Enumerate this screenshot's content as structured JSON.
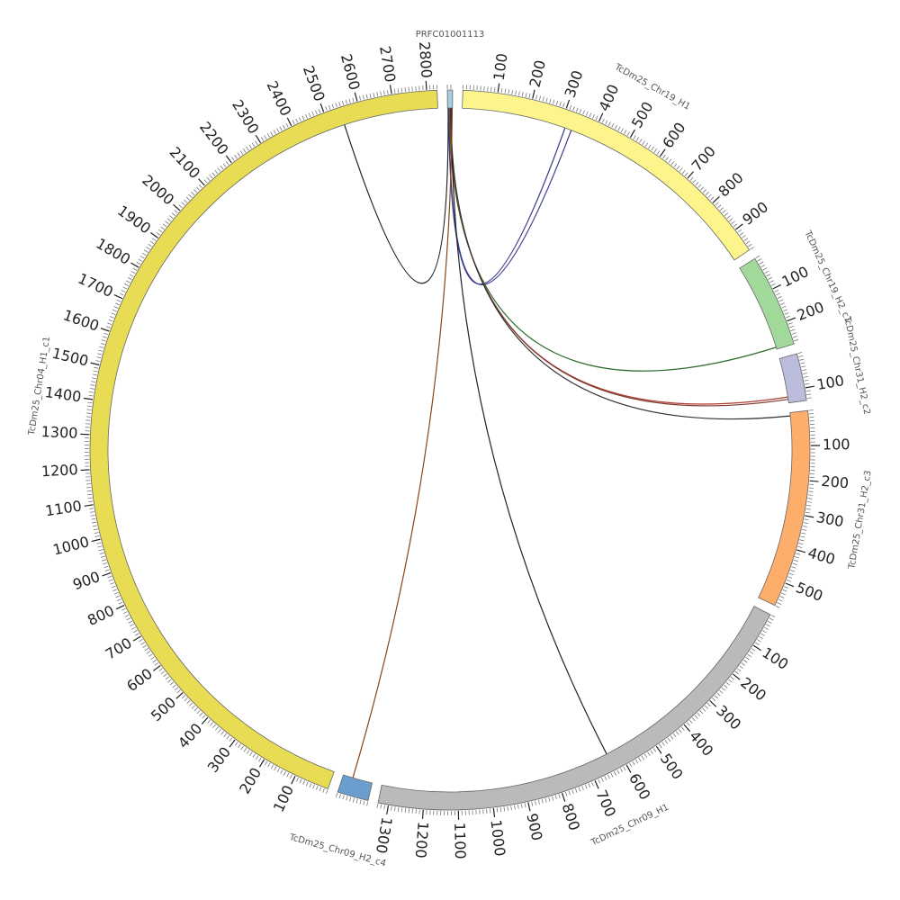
{
  "chart_data": {
    "type": "circos",
    "minor_tick_step": 10,
    "segments": [
      {
        "name": "PRFC01001113",
        "color": "#a6cee3",
        "length": 15,
        "ticks": []
      },
      {
        "name": "TcDm25_Chr19_H1",
        "color": "#fdf58c",
        "length": 970,
        "ticks": [
          100,
          200,
          300,
          400,
          500,
          600,
          700,
          800,
          900
        ]
      },
      {
        "name": "TcDm25_Chr19_H2_c1",
        "color": "#a1d99b",
        "length": 268,
        "ticks": [
          100,
          200
        ]
      },
      {
        "name": "TcDm25_Chr31_H2_c2",
        "color": "#bcbddc",
        "length": 136,
        "ticks": [
          100
        ]
      },
      {
        "name": "TcDm25_Chr31_H2_c3",
        "color": "#fdae6b",
        "length": 570,
        "ticks": [
          100,
          200,
          300,
          400,
          500
        ]
      },
      {
        "name": "TcDm25_Chr09_H1",
        "color": "#bababa",
        "length": 1330,
        "ticks": [
          100,
          200,
          300,
          400,
          500,
          600,
          700,
          800,
          900,
          1000,
          1100,
          1200,
          1300
        ]
      },
      {
        "name": "TcDm25_Chr09_H2_c4",
        "color": "#6a9ecf",
        "length": 90,
        "ticks": []
      },
      {
        "name": "TcDm25_Chr04_H1_c1",
        "color": "#e8dc55",
        "length": 2830,
        "ticks": [
          100,
          200,
          300,
          400,
          500,
          600,
          700,
          800,
          900,
          1000,
          1100,
          1200,
          1300,
          1400,
          1500,
          1600,
          1700,
          1800,
          1900,
          2000,
          2100,
          2200,
          2300,
          2400,
          2500,
          2600,
          2700,
          2800
        ]
      }
    ],
    "links": [
      {
        "source": {
          "segment": 0,
          "position": 2
        },
        "target": {
          "segment": 7,
          "position": 2545
        },
        "color": "#222222"
      },
      {
        "source": {
          "segment": 0,
          "position": 4
        },
        "target": {
          "segment": 1,
          "position": 315
        },
        "color": "#3a3a8c"
      },
      {
        "source": {
          "segment": 0,
          "position": 5
        },
        "target": {
          "segment": 1,
          "position": 335
        },
        "color": "#3a3a8c"
      },
      {
        "source": {
          "segment": 0,
          "position": 6
        },
        "target": {
          "segment": 2,
          "position": 262
        },
        "color": "#2f6b2f"
      },
      {
        "source": {
          "segment": 0,
          "position": 8
        },
        "target": {
          "segment": 3,
          "position": 118
        },
        "color": "#b03a2e"
      },
      {
        "source": {
          "segment": 0,
          "position": 9
        },
        "target": {
          "segment": 3,
          "position": 125
        },
        "color": "#7a3a2e"
      },
      {
        "source": {
          "segment": 0,
          "position": 10
        },
        "target": {
          "segment": 4,
          "position": 10
        },
        "color": "#333333"
      },
      {
        "source": {
          "segment": 0,
          "position": 12
        },
        "target": {
          "segment": 5,
          "position": 636
        },
        "color": "#222222"
      },
      {
        "source": {
          "segment": 0,
          "position": 14
        },
        "target": {
          "segment": 6,
          "position": 60
        },
        "color": "#8b4513"
      }
    ]
  }
}
